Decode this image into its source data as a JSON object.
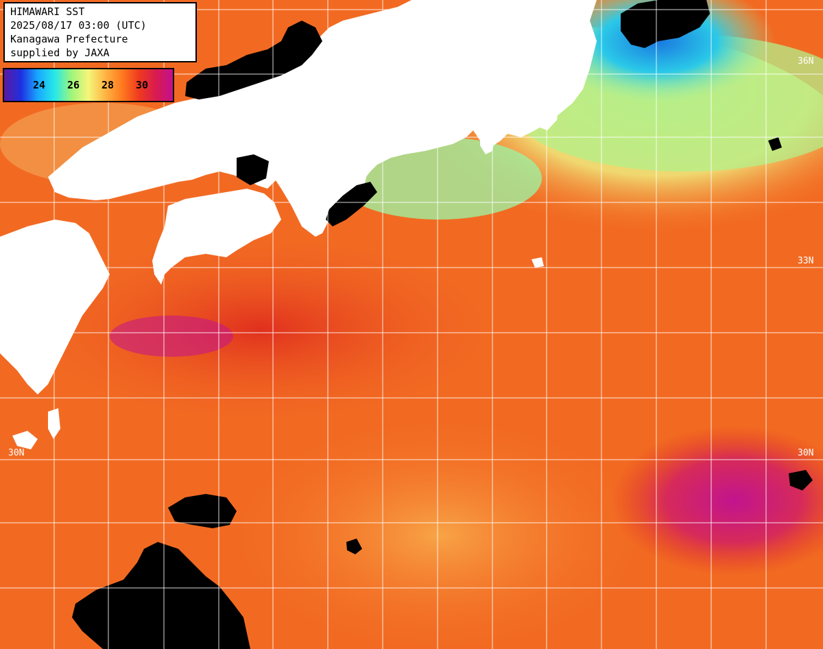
{
  "header": {
    "line1": "HIMAWARI SST",
    "line2": "2025/08/17 03:00 (UTC)",
    "line3": "Kanagawa Prefecture",
    "line4": "supplied by JAXA"
  },
  "legend": {
    "ticks": [
      "24",
      "26",
      "28",
      "30"
    ],
    "colors": [
      "#5a1aa0",
      "#1f2fe0",
      "#18a8ff",
      "#27e8e8",
      "#9ff57a",
      "#f5f57a",
      "#ffb443",
      "#ff7a1e",
      "#ef3a1f",
      "#d81b4f",
      "#c3108e"
    ]
  },
  "grid_labels": {
    "lat_36": "36N",
    "lat_33": "33N",
    "lat_30_left": "30N",
    "lat_30_right": "30N"
  },
  "palette": {
    "land": "#ffffff",
    "cloud": "#000000",
    "ocean_warm": "#f26a22",
    "ocean_hot": "#e43a1c",
    "ocean_mild": "#f8a447",
    "ocean_cool": "#c8f080",
    "ocean_cold": "#6ee8b0",
    "ocean_very_cold": "#1a9ae8",
    "ocean_max": "#c2148e",
    "grid": "#ffffff"
  }
}
